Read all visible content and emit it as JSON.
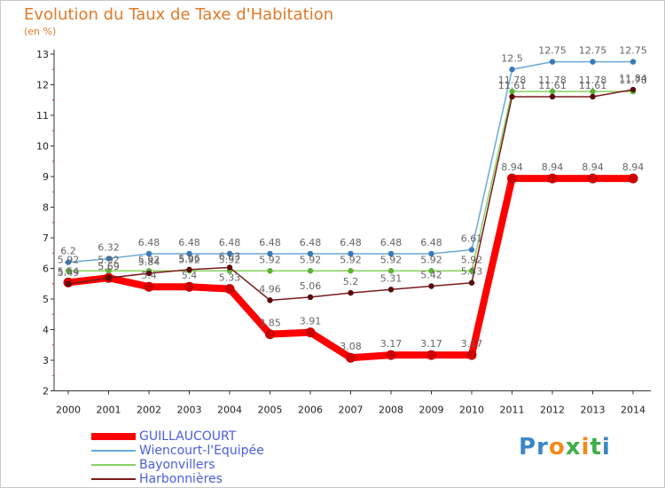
{
  "title": "Evolution du Taux de Taxe d'Habitation",
  "unit_label": "(en %)",
  "logo_text": "Proxiti",
  "chart_data": {
    "type": "line",
    "title": "Evolution du Taux de Taxe d'Habitation",
    "ylabel": "(en %)",
    "xlabel": "",
    "ylim": [
      2,
      13
    ],
    "yticks": [
      2,
      3,
      4,
      5,
      6,
      7,
      8,
      9,
      10,
      11,
      12,
      13
    ],
    "categories": [
      "2000",
      "2001",
      "2002",
      "2003",
      "2004",
      "2005",
      "2006",
      "2007",
      "2008",
      "2009",
      "2010",
      "2011",
      "2012",
      "2013",
      "2014"
    ],
    "legend_position": "bottom-left",
    "grid": false,
    "series": [
      {
        "name": "GUILLAUCOURT",
        "color": "#ff0000",
        "values": [
          5.54,
          5.69,
          5.4,
          5.4,
          5.33,
          3.85,
          3.91,
          3.08,
          3.17,
          3.17,
          3.17,
          8.94,
          8.94,
          8.94,
          8.94
        ]
      },
      {
        "name": "Wiencourt-l'Equipée",
        "color": "#6aa8d8",
        "values": [
          6.2,
          6.32,
          6.48,
          6.48,
          6.48,
          6.48,
          6.48,
          6.48,
          6.48,
          6.48,
          6.61,
          12.5,
          12.75,
          12.75,
          12.75
        ]
      },
      {
        "name": "Bayonvillers",
        "color": "#88d060",
        "values": [
          5.92,
          5.92,
          5.92,
          5.92,
          5.92,
          5.92,
          5.92,
          5.92,
          5.92,
          5.92,
          5.92,
          11.78,
          11.78,
          11.78,
          11.78
        ]
      },
      {
        "name": "Harbonnières",
        "color": "#7a1a1a",
        "values": [
          5.49,
          5.69,
          5.84,
          5.96,
          6.03,
          4.96,
          5.06,
          5.2,
          5.31,
          5.42,
          5.53,
          11.61,
          11.61,
          11.61,
          11.84
        ]
      }
    ]
  }
}
